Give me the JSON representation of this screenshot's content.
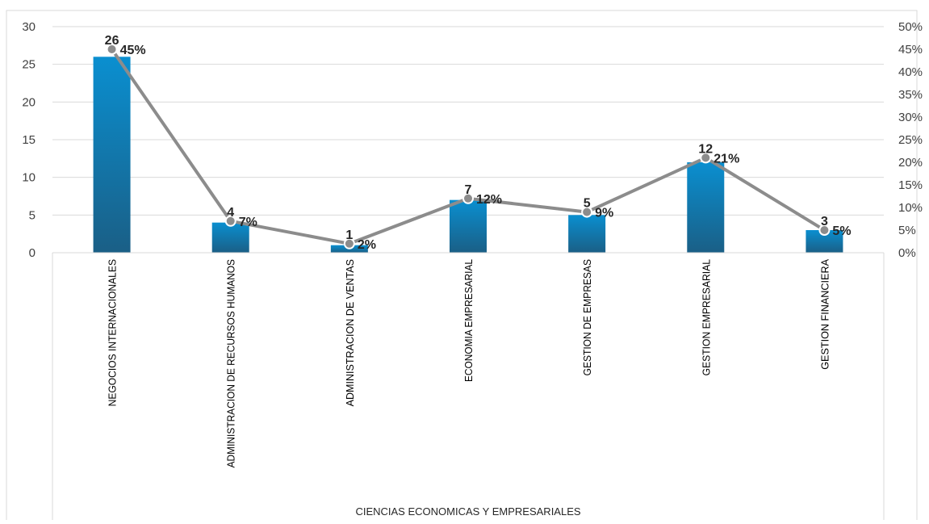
{
  "chart_data": {
    "type": "bar",
    "categories": [
      "NEGOCIOS INTERNACIONALES",
      "ADMINISTRACION DE RECURSOS HUMANOS",
      "ADMINISTRACION DE VENTAS",
      "ECONOMIA EMPRESARIAL",
      "GESTION DE EMPRESAS",
      "GESTION EMPRESARIAL",
      "GESTION FINANCIERA"
    ],
    "series": [
      {
        "type": "bar",
        "axis": "left",
        "values": [
          26,
          4,
          1,
          7,
          5,
          12,
          3
        ],
        "labels": [
          "26",
          "4",
          "1",
          "7",
          "5",
          "12",
          "3"
        ]
      },
      {
        "type": "line",
        "axis": "right",
        "values": [
          45,
          7,
          2,
          12,
          9,
          21,
          5
        ],
        "labels": [
          "45%",
          "7%",
          "2%",
          "12%",
          "9%",
          "21%",
          "5%"
        ]
      }
    ],
    "title": "",
    "xlabel": "CIENCIAS ECONOMICAS Y EMPRESARIALES",
    "ylabel": "",
    "y2label": "",
    "ylim": [
      0,
      30
    ],
    "y2lim": [
      0,
      50
    ],
    "yticks": [
      "0",
      "5",
      "10",
      "15",
      "20",
      "25",
      "30"
    ],
    "y2ticks": [
      "0%",
      "5%",
      "10%",
      "15%",
      "20%",
      "25%",
      "30%",
      "35%",
      "40%",
      "45%",
      "50%"
    ],
    "grid": true,
    "legend": "none",
    "colors": {
      "bar_top": "#0a8fd0",
      "bar_bottom": "#1a5f86",
      "line": "#8c8c8c",
      "marker_fill": "#8c8c8c",
      "marker_stroke": "#ffffff",
      "grid": "#d9d9d9"
    }
  }
}
